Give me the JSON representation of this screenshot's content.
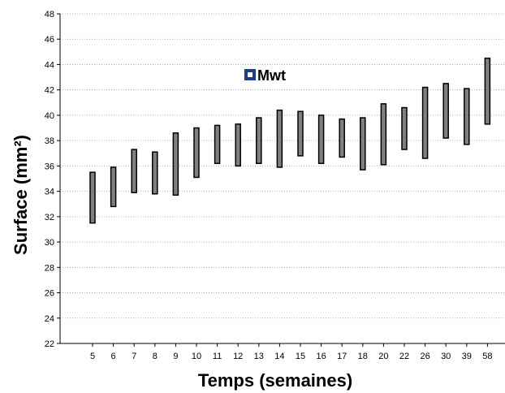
{
  "chart_data": {
    "type": "bar",
    "subtype": "floating-range",
    "title": "",
    "xlabel": "Temps (semaines)",
    "ylabel": "Surface (mm²)",
    "ylim": [
      22,
      48
    ],
    "ytick_step": 2,
    "grid": "horizontal-dotted",
    "legend_position": "upper-center",
    "categories": [
      "5",
      "6",
      "7",
      "8",
      "9",
      "10",
      "11",
      "12",
      "13",
      "14",
      "15",
      "16",
      "17",
      "18",
      "20",
      "22",
      "26",
      "30",
      "39",
      "58"
    ],
    "series": [
      {
        "name": "Mwt",
        "color": "#808080",
        "legend_marker_color": "#1f3c8a",
        "low": [
          31.5,
          32.8,
          33.9,
          33.8,
          33.7,
          35.1,
          36.2,
          36.0,
          36.2,
          35.9,
          36.8,
          36.2,
          36.7,
          35.7,
          36.1,
          37.3,
          36.6,
          38.2,
          37.7,
          39.3
        ],
        "high": [
          35.5,
          35.9,
          37.3,
          37.1,
          38.6,
          39.0,
          39.2,
          39.3,
          39.8,
          40.4,
          40.3,
          40.0,
          39.7,
          39.8,
          40.9,
          40.6,
          42.2,
          42.5,
          42.1,
          44.5
        ]
      }
    ]
  }
}
